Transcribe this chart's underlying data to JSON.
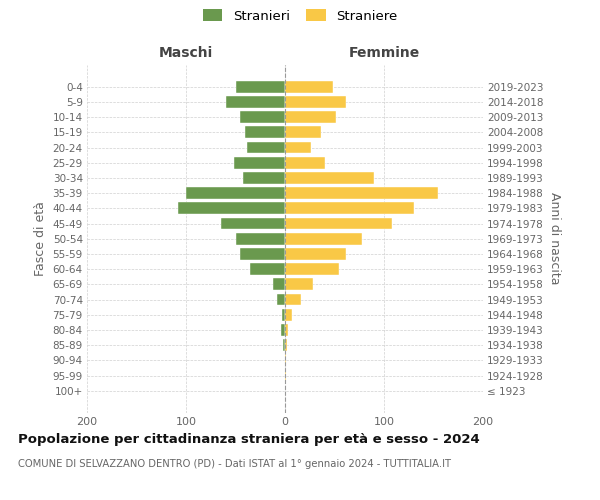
{
  "age_groups": [
    "100+",
    "95-99",
    "90-94",
    "85-89",
    "80-84",
    "75-79",
    "70-74",
    "65-69",
    "60-64",
    "55-59",
    "50-54",
    "45-49",
    "40-44",
    "35-39",
    "30-34",
    "25-29",
    "20-24",
    "15-19",
    "10-14",
    "5-9",
    "0-4"
  ],
  "birth_years": [
    "≤ 1923",
    "1924-1928",
    "1929-1933",
    "1934-1938",
    "1939-1943",
    "1944-1948",
    "1949-1953",
    "1954-1958",
    "1959-1963",
    "1964-1968",
    "1969-1973",
    "1974-1978",
    "1979-1983",
    "1984-1988",
    "1989-1993",
    "1994-1998",
    "1999-2003",
    "2004-2008",
    "2009-2013",
    "2014-2018",
    "2019-2023"
  ],
  "maschi": [
    0,
    0,
    0,
    2,
    4,
    3,
    8,
    12,
    35,
    45,
    50,
    65,
    108,
    100,
    42,
    52,
    38,
    40,
    45,
    60,
    50
  ],
  "femmine": [
    0,
    1,
    1,
    2,
    3,
    7,
    16,
    28,
    55,
    62,
    78,
    108,
    130,
    155,
    90,
    40,
    26,
    36,
    52,
    62,
    48
  ],
  "maschi_color": "#6a994e",
  "femmine_color": "#f9c846",
  "background_color": "#ffffff",
  "grid_color": "#cccccc",
  "title": "Popolazione per cittadinanza straniera per età e sesso - 2024",
  "subtitle": "COMUNE DI SELVAZZANO DENTRO (PD) - Dati ISTAT al 1° gennaio 2024 - TUTTITALIA.IT",
  "ylabel_left": "Fasce di età",
  "ylabel_right": "Anni di nascita",
  "header_left": "Maschi",
  "header_right": "Femmine",
  "legend_maschi": "Stranieri",
  "legend_femmine": "Straniere",
  "xlim": 200
}
